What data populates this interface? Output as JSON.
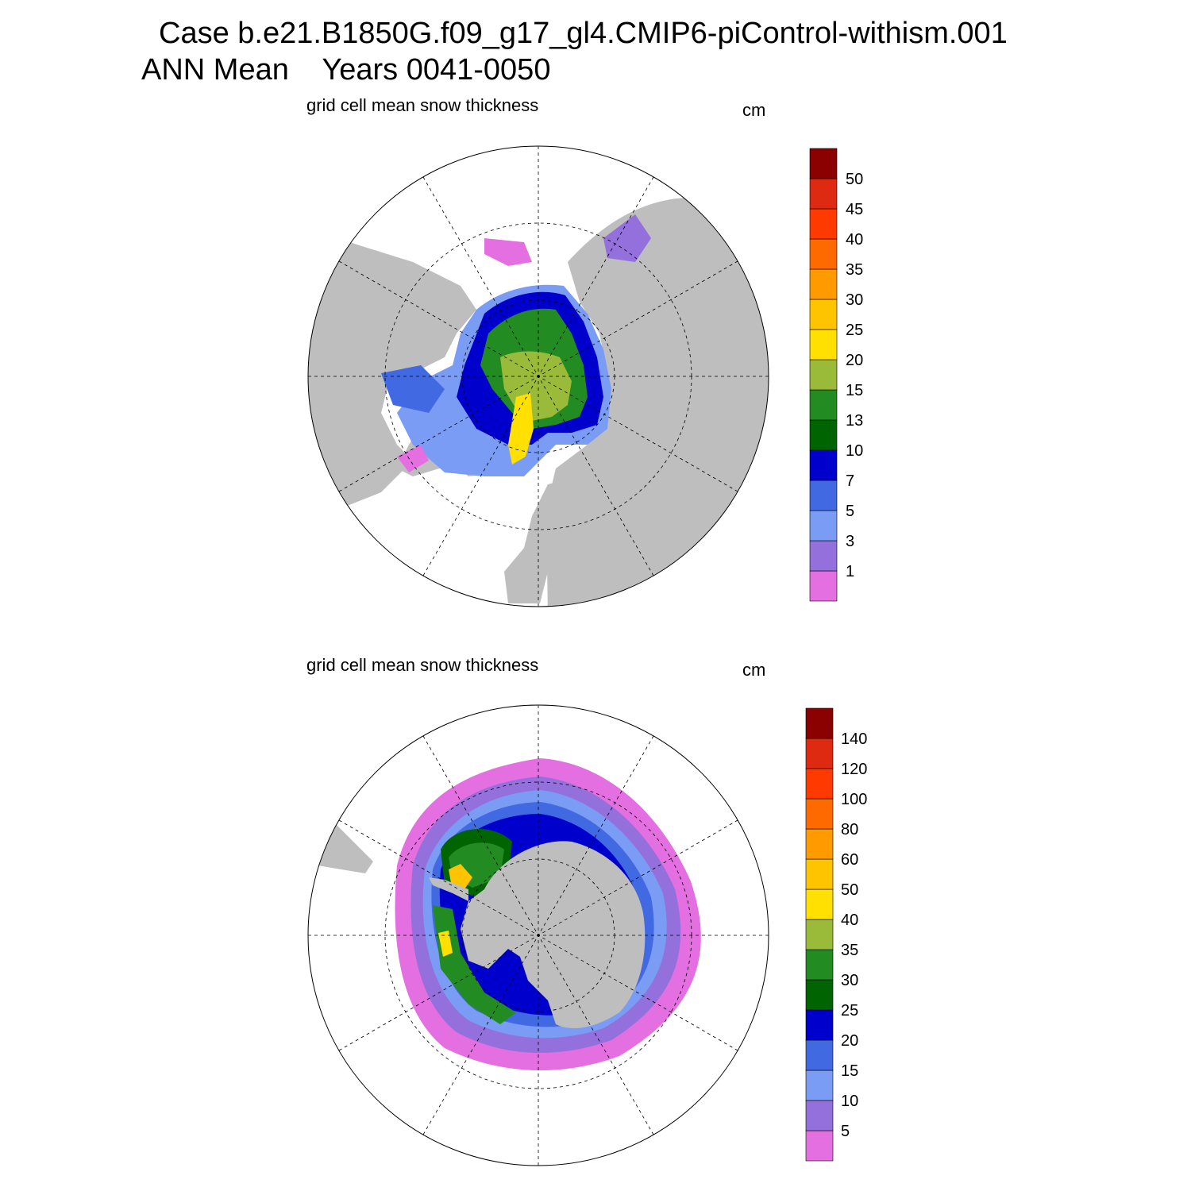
{
  "header": {
    "case_line": "Case b.e21.B1850G.f09_g17_gl4.CMIP6-piControl-withism.001",
    "period_line": "ANN Mean    Years 0041-0050"
  },
  "colors": {
    "land": "#bebebe",
    "ocean": "#ffffff",
    "palette": [
      "#e46fe0",
      "#9370db",
      "#7b9cf5",
      "#4169e1",
      "#0000cd",
      "#006400",
      "#228b22",
      "#9aba3a",
      "#ffe000",
      "#ffc400",
      "#ff9a00",
      "#ff6a00",
      "#ff3a00",
      "#dd2a10",
      "#8b0000"
    ]
  },
  "panels": [
    {
      "id": "north",
      "subtitle": "grid cell mean snow thickness",
      "units": "cm",
      "colorbar_levels": [
        "1",
        "3",
        "5",
        "7",
        "10",
        "13",
        "15",
        "20",
        "25",
        "30",
        "35",
        "40",
        "45",
        "50"
      ]
    },
    {
      "id": "south",
      "subtitle": "grid cell mean snow thickness",
      "units": "cm",
      "colorbar_levels": [
        "5",
        "10",
        "15",
        "20",
        "25",
        "30",
        "35",
        "40",
        "50",
        "60",
        "80",
        "100",
        "120",
        "140"
      ]
    }
  ]
}
